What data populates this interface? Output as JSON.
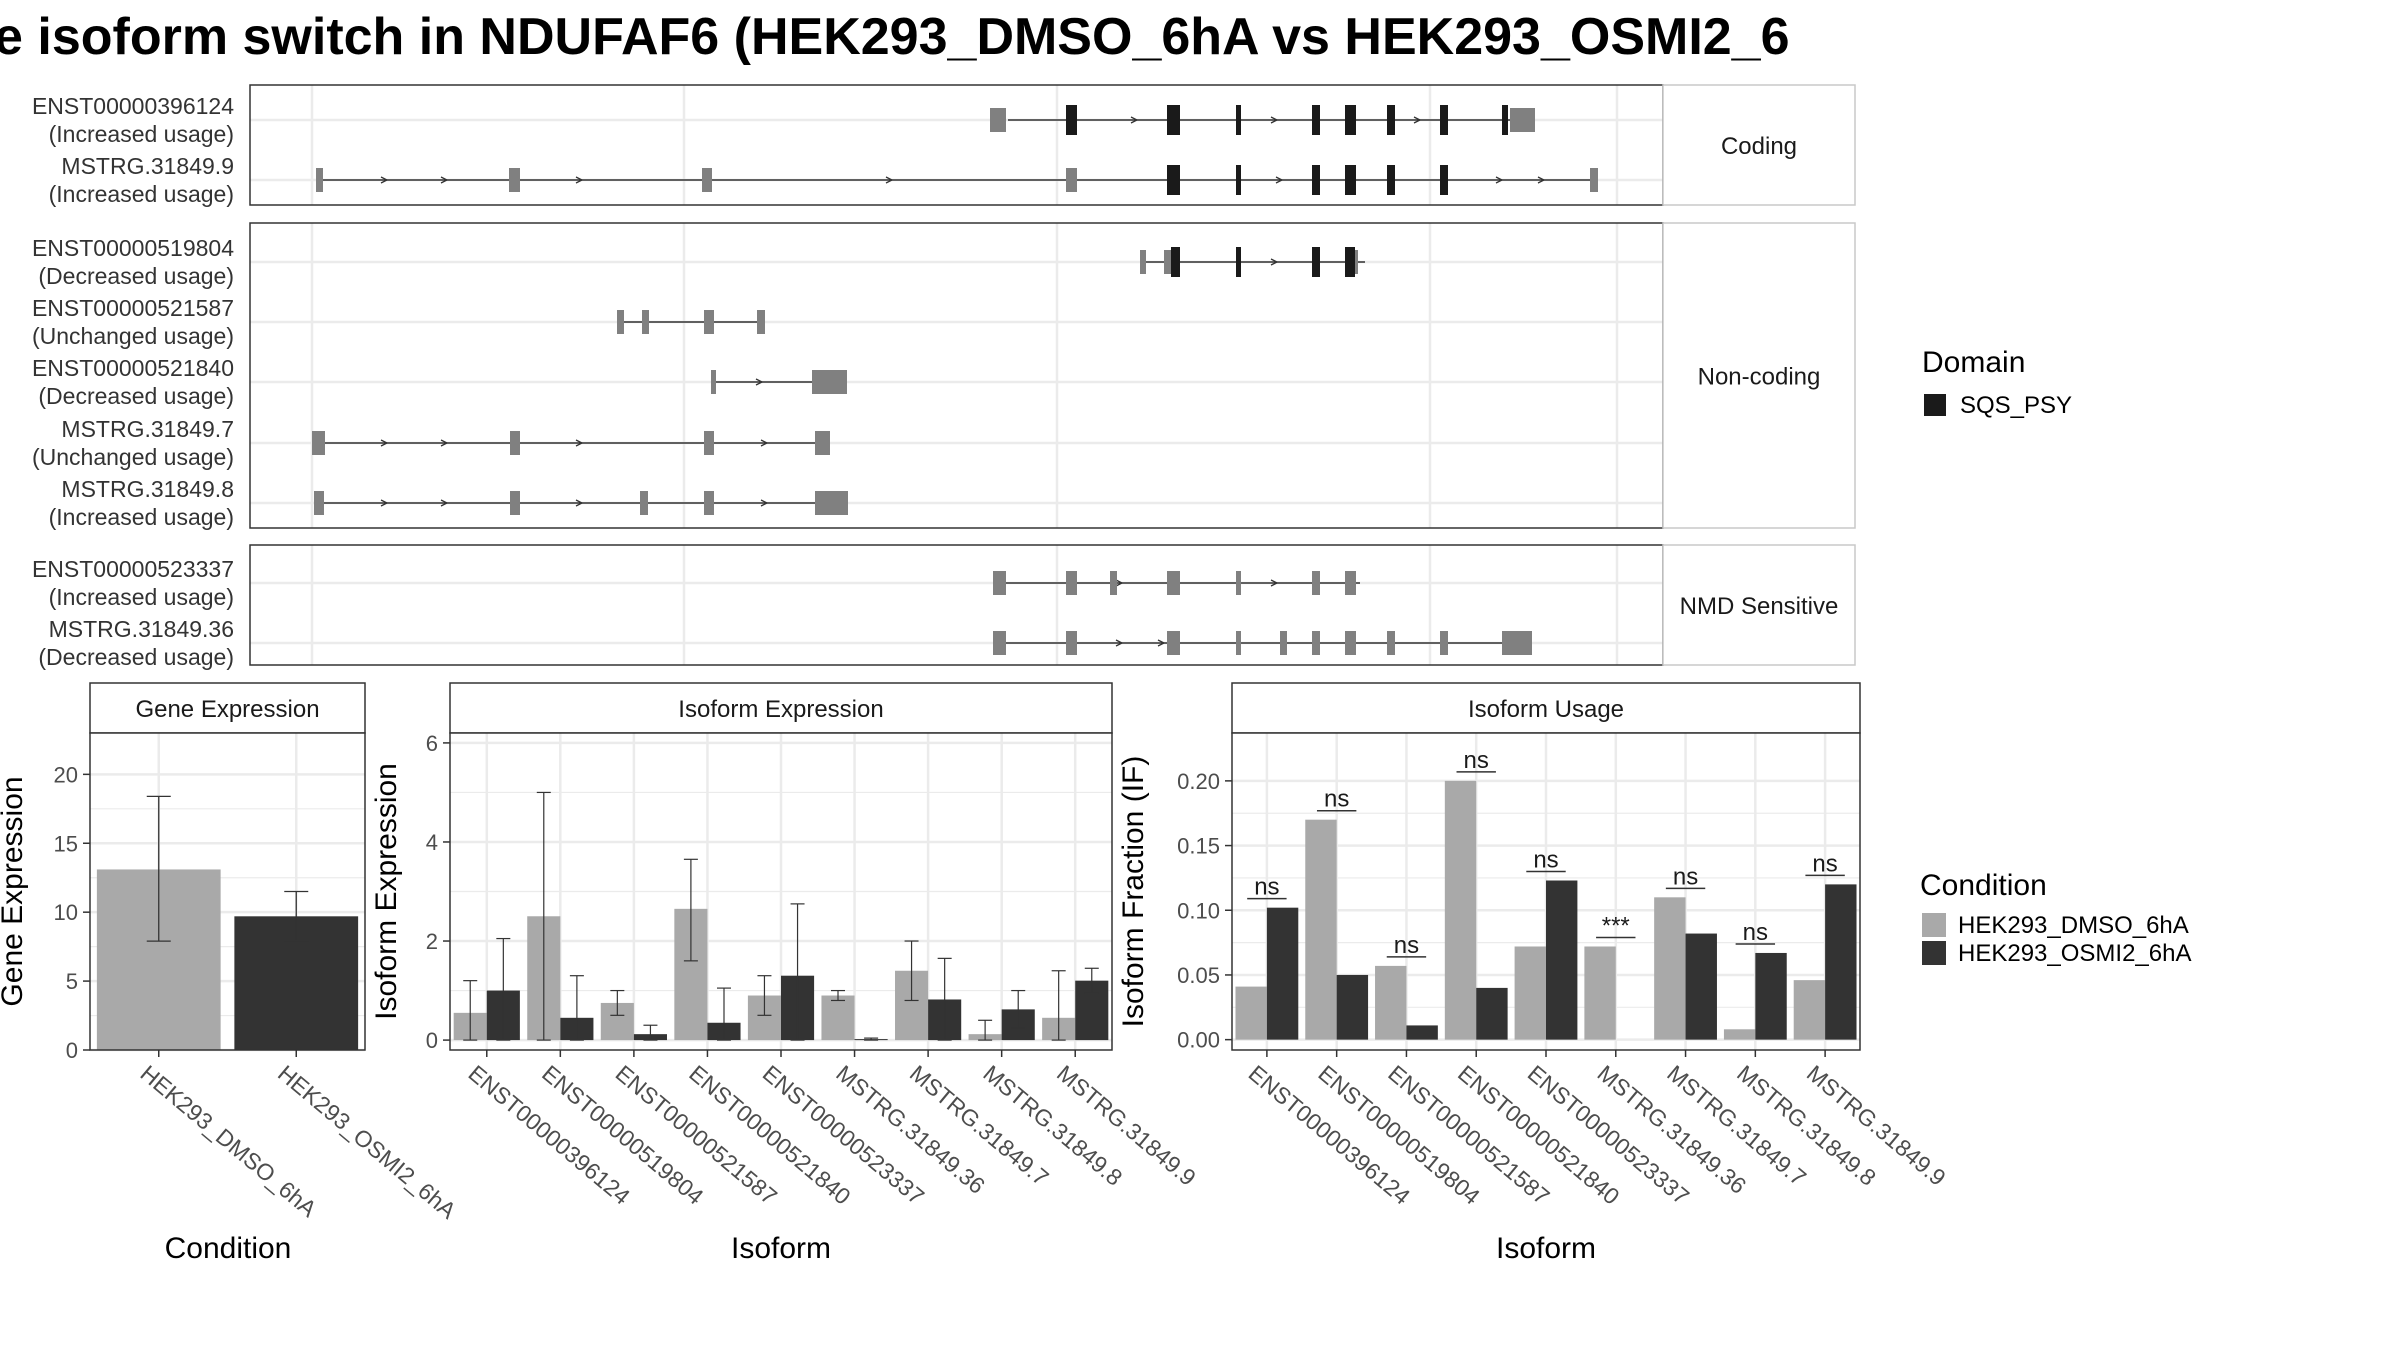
{
  "title": "e isoform switch in NDUFAF6 (HEK293_DMSO_6hA vs HEK293_OSMI2_6",
  "colors": {
    "dmso": "#a9a9a9",
    "osmi": "#333333",
    "exon_utr": "#808080",
    "exon_cds": "#1a1a1a",
    "domain": "#1a1a1a",
    "grid": "#ebebeb",
    "strip": "#ffffff",
    "frame": "#333333"
  },
  "structure": {
    "rows": [
      {
        "id": "ENST00000396124",
        "status": "(Increased usage)",
        "panel": 0
      },
      {
        "id": "MSTRG.31849.9",
        "status": "(Increased usage)",
        "panel": 0
      },
      {
        "id": "ENST00000519804",
        "status": "(Decreased usage)",
        "panel": 1
      },
      {
        "id": "ENST00000521587",
        "status": "(Unchanged usage)",
        "panel": 1
      },
      {
        "id": "ENST00000521840",
        "status": "(Decreased usage)",
        "panel": 1
      },
      {
        "id": "MSTRG.31849.7",
        "status": "(Unchanged usage)",
        "panel": 1
      },
      {
        "id": "MSTRG.31849.8",
        "status": "(Increased usage)",
        "panel": 1
      },
      {
        "id": "ENST00000523337",
        "status": "(Increased usage)",
        "panel": 2
      },
      {
        "id": "MSTRG.31849.36",
        "status": "(Decreased usage)",
        "panel": 2
      }
    ],
    "panel_labels": [
      "Coding",
      "Non-coding",
      "NMD Sensitive"
    ],
    "domain_legend": {
      "title": "Domain",
      "item": "SQS_PSY"
    }
  },
  "chart_data": [
    {
      "type": "bar",
      "title": "Gene Expression",
      "xlabel": "Condition",
      "ylabel": "Gene Expression",
      "categories": [
        "HEK293_DMSO_6hA",
        "HEK293_OSMI2_6hA"
      ],
      "values": [
        13.1,
        9.7
      ],
      "errors": [
        [
          7.9,
          18.4
        ],
        [
          7.9,
          11.5
        ]
      ],
      "ylim": [
        0,
        23
      ],
      "yticks": [
        0,
        5,
        10,
        15,
        20
      ]
    },
    {
      "type": "bar",
      "title": "Isoform Expression",
      "xlabel": "Isoform",
      "ylabel": "Isoform Expression",
      "categories": [
        "ENST00000396124",
        "ENST00000519804",
        "ENST00000521587",
        "ENST00000521840",
        "ENST00000523337",
        "MSTRG.31849.36",
        "MSTRG.31849.7",
        "MSTRG.31849.8",
        "MSTRG.31849.9"
      ],
      "series": [
        {
          "name": "HEK293_DMSO_6hA",
          "values": [
            0.55,
            2.5,
            0.75,
            2.65,
            0.9,
            0.9,
            1.4,
            0.12,
            0.45
          ],
          "errors": [
            [
              0.0,
              1.2
            ],
            [
              0.0,
              5.0
            ],
            [
              0.5,
              1.0
            ],
            [
              1.6,
              3.65
            ],
            [
              0.5,
              1.3
            ],
            [
              0.8,
              1.0
            ],
            [
              0.8,
              2.0
            ],
            [
              0.0,
              0.4
            ],
            [
              0.0,
              1.4
            ]
          ]
        },
        {
          "name": "HEK293_OSMI2_6hA",
          "values": [
            1.0,
            0.45,
            0.12,
            0.35,
            1.3,
            0.02,
            0.82,
            0.62,
            1.2
          ],
          "errors": [
            [
              0.0,
              2.05
            ],
            [
              0.0,
              1.3
            ],
            [
              0.0,
              0.3
            ],
            [
              0.0,
              1.05
            ],
            [
              0.0,
              2.75
            ],
            [
              0.0,
              0.04
            ],
            [
              0.0,
              1.65
            ],
            [
              0.25,
              1.0
            ],
            [
              0.95,
              1.45
            ]
          ]
        }
      ],
      "ylim": [
        -0.2,
        6.2
      ],
      "yticks": [
        0,
        2,
        4,
        6
      ]
    },
    {
      "type": "bar",
      "title": "Isoform Usage",
      "xlabel": "Isoform",
      "ylabel": "Isoform Fraction (IF)",
      "categories": [
        "ENST00000396124",
        "ENST00000519804",
        "ENST00000521587",
        "ENST00000521840",
        "ENST00000523337",
        "MSTRG.31849.36",
        "MSTRG.31849.7",
        "MSTRG.31849.8",
        "MSTRG.31849.9"
      ],
      "series": [
        {
          "name": "HEK293_DMSO_6hA",
          "values": [
            0.041,
            0.17,
            0.057,
            0.2,
            0.072,
            0.072,
            0.11,
            0.008,
            0.046
          ]
        },
        {
          "name": "HEK293_OSMI2_6hA",
          "values": [
            0.102,
            0.05,
            0.011,
            0.04,
            0.123,
            0.0,
            0.082,
            0.067,
            0.12
          ]
        }
      ],
      "significance": [
        "ns",
        "ns",
        "ns",
        "ns",
        "ns",
        "***",
        "ns",
        "ns",
        "ns"
      ],
      "ylim": [
        -0.008,
        0.237
      ],
      "yticks": [
        0.0,
        0.05,
        0.1,
        0.15,
        0.2
      ],
      "ytick_labels": [
        "0.00",
        "0.05",
        "0.10",
        "0.15",
        "0.20"
      ]
    }
  ],
  "condition_legend": {
    "title": "Condition",
    "items": [
      "HEK293_DMSO_6hA",
      "HEK293_OSMI2_6hA"
    ]
  }
}
